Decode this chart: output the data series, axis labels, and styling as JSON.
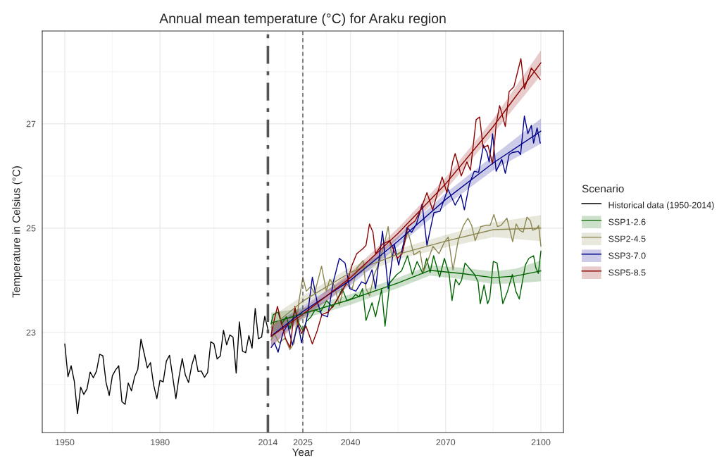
{
  "chart_data": {
    "type": "line",
    "title": "Annual mean temperature (°C) for Araku region",
    "xlabel": "Year",
    "ylabel": "Temperature in Celsius (°C)",
    "legend_title": "Scenario",
    "xlim": [
      1942.9,
      2107.1
    ],
    "xticks": [
      1950,
      1980,
      2014,
      2025,
      2040,
      2070,
      2100
    ],
    "ylim": [
      21.08,
      28.78
    ],
    "yticks": [
      23,
      25,
      27
    ],
    "grid": true,
    "legend": "right",
    "ref_lines": [
      {
        "axis": "x",
        "value": 2014,
        "label": null,
        "color": "#555555",
        "line_style": "dashdot"
      },
      {
        "axis": "x",
        "value": 2025,
        "label": null,
        "color": "#555555",
        "line_style": "dashed"
      }
    ],
    "series": [
      {
        "name": "Historical data (1950-2014)",
        "color": "#000000",
        "x": [
          1950,
          1951,
          1952,
          1953,
          1954,
          1955,
          1956,
          1957,
          1958,
          1959,
          1960,
          1961,
          1962,
          1963,
          1964,
          1965,
          1966,
          1967,
          1968,
          1969,
          1970,
          1971,
          1972,
          1973,
          1974,
          1975,
          1976,
          1977,
          1978,
          1979,
          1980,
          1981,
          1982,
          1983,
          1984,
          1985,
          1986,
          1987,
          1988,
          1989,
          1990,
          1991,
          1992,
          1993,
          1994,
          1995,
          1996,
          1997,
          1998,
          1999,
          2000,
          2001,
          2002,
          2003,
          2004,
          2005,
          2006,
          2007,
          2008,
          2009,
          2010,
          2011,
          2012,
          2013,
          2014
        ],
        "values": [
          22.78,
          22.15,
          22.36,
          22.06,
          21.44,
          21.95,
          21.81,
          21.92,
          22.24,
          22.13,
          22.26,
          22.58,
          22.55,
          22.04,
          21.79,
          22.17,
          22.28,
          22.36,
          21.67,
          21.62,
          22.03,
          21.88,
          22.15,
          22.29,
          22.87,
          22.6,
          22.32,
          22.42,
          21.99,
          21.73,
          22.08,
          22.05,
          22.45,
          22.56,
          22.15,
          21.73,
          22.15,
          22.5,
          22.18,
          22.04,
          22.37,
          22.57,
          22.25,
          22.26,
          22.14,
          22.23,
          22.82,
          22.78,
          22.49,
          22.55,
          23.04,
          22.76,
          22.95,
          22.91,
          22.22,
          23.2,
          22.64,
          22.61,
          22.94,
          22.7,
          23.46,
          22.88,
          22.91,
          23.31,
          23.06
        ]
      },
      {
        "name": "SSP1-2.6",
        "color": "#006400",
        "x": [
          2015,
          2015.7,
          2017.2,
          2018.3,
          2019.8,
          2021,
          2022.5,
          2023.9,
          2025,
          2026.1,
          2027.6,
          2028.8,
          2030.6,
          2032.5,
          2034.4,
          2035.9,
          2037.4,
          2038.9,
          2040.7,
          2041.6,
          2042.7,
          2043.8,
          2044.9,
          2046.8,
          2047.9,
          2049.8,
          2050.9,
          2052.4,
          2054.6,
          2056.1,
          2058,
          2059.5,
          2061,
          2062.8,
          2064,
          2065.1,
          2066.2,
          2068.1,
          2069.6,
          2071.1,
          2072,
          2073.1,
          2074.2,
          2075,
          2076.1,
          2077.9,
          2079.1,
          2080.2,
          2080.9,
          2082.1,
          2083.2,
          2083.9,
          2085,
          2086.2,
          2088,
          2089.5,
          2091,
          2092.1,
          2093.2,
          2095.1,
          2096.2,
          2097.7,
          2098.4,
          2099.2,
          2100
        ],
        "values": [
          23.16,
          23.34,
          23.39,
          23.16,
          23.3,
          23.07,
          23.43,
          23.16,
          23.03,
          23.21,
          23.3,
          23.43,
          23.39,
          23.61,
          23.48,
          23.64,
          23.84,
          23.61,
          23.66,
          23.73,
          23.68,
          23.84,
          23.23,
          23.57,
          23.3,
          23.82,
          23.12,
          23.95,
          24.11,
          24.18,
          24.47,
          24.11,
          24.36,
          24.13,
          24.42,
          24.15,
          24.47,
          24.06,
          24.42,
          24.11,
          23.61,
          24.02,
          23.91,
          24.0,
          24.33,
          24.2,
          24.11,
          23.97,
          23.55,
          23.91,
          23.55,
          23.66,
          24.36,
          24.33,
          23.55,
          23.79,
          24.11,
          23.79,
          23.64,
          24.29,
          24.42,
          24.47,
          24.24,
          24.13,
          24.56
        ]
      },
      {
        "name": "SSP2-4.5",
        "color": "#8b864e",
        "x": [
          2015,
          2016,
          2017.5,
          2019.4,
          2020.9,
          2022.3,
          2023.8,
          2025,
          2026.1,
          2027.5,
          2028.7,
          2030.9,
          2032.4,
          2033.5,
          2035,
          2036.5,
          2038.3,
          2039.5,
          2040.6,
          2042.1,
          2044,
          2044.9,
          2046,
          2047.5,
          2049,
          2050.5,
          2051.9,
          2053,
          2054.9,
          2056.4,
          2058.1,
          2060,
          2061.9,
          2063,
          2064.1,
          2066,
          2067.9,
          2069.7,
          2070.8,
          2072.3,
          2074,
          2075.6,
          2077,
          2078.2,
          2079.3,
          2081.1,
          2082.6,
          2084,
          2085.2,
          2086.3,
          2087.4,
          2089.3,
          2091.1,
          2092.2,
          2093.3,
          2094.4,
          2095.6,
          2096.7,
          2097.4,
          2098.6,
          2099.3,
          2100
        ],
        "values": [
          22.85,
          22.98,
          22.8,
          22.89,
          22.67,
          22.8,
          23.61,
          24.06,
          23.79,
          23.88,
          23.75,
          24.27,
          23.79,
          24.02,
          23.88,
          23.52,
          23.97,
          23.88,
          23.84,
          24.24,
          24.38,
          23.84,
          23.7,
          24.11,
          24.33,
          24.65,
          25.03,
          24.45,
          24.51,
          24.56,
          24.94,
          24.49,
          24.56,
          24.15,
          24.33,
          24.65,
          24.51,
          24.74,
          24.83,
          24.2,
          24.78,
          25.05,
          25.19,
          25.05,
          24.76,
          25.03,
          25.05,
          25.05,
          25.26,
          25.03,
          25.05,
          25.19,
          24.74,
          25.08,
          24.96,
          24.92,
          25.21,
          25.14,
          24.96,
          24.99,
          25.05,
          24.65
        ]
      },
      {
        "name": "SSP3-7.0",
        "color": "#00008b",
        "x": [
          2015,
          2016.1,
          2017.2,
          2018.7,
          2020.2,
          2021.7,
          2023.5,
          2024.6,
          2026.5,
          2028,
          2029.4,
          2030.9,
          2032.8,
          2034.6,
          2036.5,
          2038.3,
          2039.8,
          2041.7,
          2043.5,
          2044.9,
          2046.8,
          2047.9,
          2050.1,
          2051.9,
          2053.8,
          2055.2,
          2057.8,
          2059.3,
          2060.8,
          2062.6,
          2064.1,
          2066.3,
          2068.2,
          2070.7,
          2073,
          2074.8,
          2075.9,
          2077.5,
          2079,
          2080.4,
          2081.9,
          2083,
          2083.7,
          2084.8,
          2085.9,
          2087.7,
          2088.8,
          2090,
          2091,
          2092.9,
          2093.6,
          2094.8,
          2095.9,
          2097,
          2097.7,
          2098.8,
          2099.8
        ],
        "values": [
          22.71,
          22.8,
          22.62,
          22.98,
          23.16,
          22.76,
          23.16,
          22.8,
          23.34,
          24.06,
          23.61,
          23.34,
          23.3,
          23.97,
          24.42,
          24.33,
          23.84,
          23.79,
          23.97,
          23.93,
          24.2,
          23.84,
          24.94,
          23.84,
          24.69,
          24.29,
          25.01,
          24.92,
          25.08,
          25.46,
          24.67,
          25.3,
          25.32,
          25.75,
          25.44,
          25.64,
          25.35,
          25.85,
          26.09,
          26.07,
          26.59,
          26.45,
          26.27,
          26.81,
          26.09,
          26.32,
          26.05,
          26.41,
          26.45,
          26.47,
          26.41,
          27.15,
          26.81,
          26.97,
          26.63,
          26.92,
          26.63
        ]
      },
      {
        "name": "SSP5-8.5",
        "color": "#8b0000",
        "x": [
          2015,
          2015.7,
          2017,
          2018,
          2019.5,
          2021,
          2022.5,
          2023.5,
          2024.6,
          2026,
          2028,
          2029.5,
          2031,
          2033,
          2035,
          2037,
          2039,
          2040.5,
          2042,
          2043.8,
          2044.9,
          2046,
          2047.1,
          2047.9,
          2050,
          2052.3,
          2054.8,
          2056.3,
          2058.1,
          2060.4,
          2062.2,
          2064.1,
          2065.9,
          2068.9,
          2070.4,
          2072.2,
          2073,
          2074.9,
          2076.7,
          2077.8,
          2079.6,
          2080.7,
          2081.8,
          2083.3,
          2084.8,
          2085.9,
          2087,
          2088.8,
          2090,
          2091.5,
          2093.7,
          2094.8,
          2097,
          2099.8
        ],
        "values": [
          22.95,
          23.16,
          23.5,
          23.25,
          22.89,
          22.71,
          23.5,
          23.16,
          22.98,
          23.12,
          22.78,
          23.03,
          23.34,
          23.39,
          23.55,
          23.75,
          23.97,
          24.29,
          24.51,
          24.6,
          24.67,
          25.08,
          24.92,
          24.51,
          24.69,
          24.76,
          24.42,
          24.51,
          25.03,
          25.14,
          25.37,
          25.68,
          25.35,
          25.98,
          25.68,
          26.27,
          26.43,
          26.0,
          26.27,
          26.11,
          27.08,
          27.13,
          26.54,
          26.59,
          26.23,
          26.99,
          27.35,
          26.95,
          27.62,
          27.71,
          28.25,
          27.67,
          28.07,
          27.85
        ]
      },
      {
        "color": "#006400",
        "x": [
          2015,
          2025,
          2040,
          2055,
          2065,
          2075,
          2085,
          2092,
          2100
        ],
        "values": [
          23.18,
          23.36,
          23.63,
          23.95,
          24.19,
          24.13,
          24.05,
          24.08,
          24.18
        ],
        "lower": [
          22.98,
          23.26,
          23.53,
          23.85,
          24.09,
          24.02,
          23.93,
          23.94,
          23.98
        ],
        "upper": [
          23.38,
          23.46,
          23.73,
          24.05,
          24.29,
          24.24,
          24.17,
          24.22,
          24.38
        ]
      },
      {
        "color": "#8b864e",
        "x": [
          2015,
          2025,
          2040,
          2055,
          2070,
          2085,
          2100
        ],
        "values": [
          23.1,
          23.6,
          24.15,
          24.5,
          24.75,
          24.97,
          25.0
        ],
        "lower": [
          22.9,
          23.5,
          24.05,
          24.4,
          24.63,
          24.83,
          24.75
        ],
        "upper": [
          23.3,
          23.7,
          24.25,
          24.6,
          24.87,
          25.11,
          25.25
        ]
      },
      {
        "color": "#00008b",
        "x": [
          2015,
          2025,
          2040,
          2055,
          2070,
          2085,
          2100
        ],
        "values": [
          22.93,
          23.4,
          24.0,
          24.75,
          25.55,
          26.25,
          26.86
        ],
        "lower": [
          22.73,
          23.3,
          23.9,
          24.65,
          25.43,
          26.11,
          26.62
        ],
        "upper": [
          23.13,
          23.5,
          24.1,
          24.85,
          25.67,
          26.39,
          27.1
        ]
      },
      {
        "color": "#8b0000",
        "x": [
          2015,
          2025,
          2040,
          2055,
          2070,
          2085,
          2100
        ],
        "values": [
          22.92,
          23.35,
          24.05,
          24.9,
          25.85,
          26.95,
          28.17
        ],
        "lower": [
          22.72,
          23.25,
          23.95,
          24.8,
          25.73,
          26.81,
          27.93
        ],
        "upper": [
          23.12,
          23.45,
          24.15,
          25.0,
          25.97,
          27.09,
          28.41
        ]
      }
    ]
  }
}
